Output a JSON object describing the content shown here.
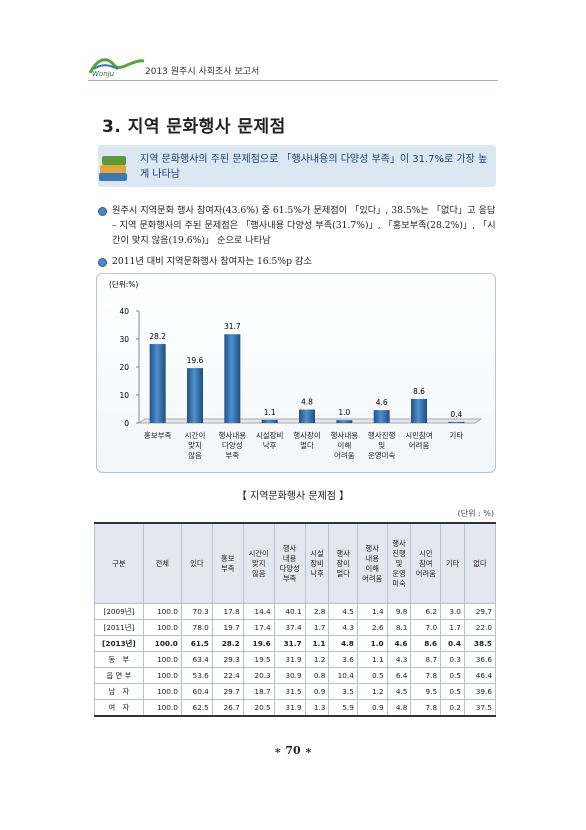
{
  "header": {
    "logo": "Wonju",
    "report": "2013 원주시 사회조사 보고서"
  },
  "title": "3. 지역 문화행사 문제점",
  "highlight": "지역 문화행사의 주된 문제점으로 「행사내용의 다양성 부족」이 31.7%로 가장 높게 나타남",
  "bullets": [
    {
      "text": "원주시 지역문화 행사 참여자(43.6%) 중 61.5%가 문제점이 「있다」, 38.5%는 「없다」고 응답",
      "sub": "– 지역 문화행사의 주된 문제점은 「행사내용 다양성 부족(31.7%)」, 「홍보부족(28.2%)」, 「시간이 맞지 않음(19.6%)」 순으로 나타남"
    },
    {
      "text": "2011년 대비 지역문화행사 참여자는 16.5%p 감소"
    }
  ],
  "chart_data": {
    "type": "bar",
    "unit": "(단위:%)",
    "categories": [
      "홍보부족",
      "시간이\n맞지\n않음",
      "행사내용\n다양성\n부족",
      "시설장비\n낙후",
      "행사장이\n멀다",
      "행사내용\n이해\n어려움",
      "행사진행\n및\n운영미숙",
      "시민참여\n어려움",
      "기타"
    ],
    "values": [
      28.2,
      19.6,
      31.7,
      1.1,
      4.8,
      1.0,
      4.6,
      8.6,
      0.4
    ],
    "value_labels": [
      "28.2",
      "19.6",
      "31.7",
      "1.1",
      "4.8",
      "1.0",
      "4.6",
      "8.6",
      "0.4"
    ],
    "color": "#2f6fa8",
    "ylim": [
      0,
      40
    ],
    "yticks": [
      0,
      10,
      20,
      30,
      40
    ],
    "grid": false
  },
  "table": {
    "caption": "【 지역문화행사 문제점 】",
    "unit": "(단위 : %)",
    "header": [
      "구분",
      "전체",
      "있다",
      "홍보\n부족",
      "시간이\n맞지\n않음",
      "행사\n내용\n다양성\n부족",
      "시설\n장비\n낙후",
      "행사\n장이\n멀다",
      "행사\n내용\n이해\n어려움",
      "행사\n진행\n및\n운영\n미숙",
      "시민\n참여\n어려움",
      "기타",
      "없다"
    ],
    "rows": [
      [
        "[2009년]",
        "100.0",
        "70.3",
        "17.8",
        "14.4",
        "40.1",
        "2.8",
        "4.5",
        "1.4",
        "9.8",
        "6.2",
        "3.0",
        "29.7"
      ],
      [
        "[2011년]",
        "100.0",
        "78.0",
        "19.7",
        "17.4",
        "37.4",
        "1.7",
        "4.3",
        "2.6",
        "8.1",
        "7.0",
        "1.7",
        "22.0"
      ],
      [
        "[2013년]",
        "100.0",
        "61.5",
        "28.2",
        "19.6",
        "31.7",
        "1.1",
        "4.8",
        "1.0",
        "4.6",
        "8.6",
        "0.4",
        "38.5"
      ],
      [
        "동　부",
        "100.0",
        "63.4",
        "29.3",
        "19.5",
        "31.9",
        "1.2",
        "3.6",
        "1.1",
        "4.3",
        "8.7",
        "0.3",
        "36.6"
      ],
      [
        "읍 면 부",
        "100.0",
        "53.6",
        "22.4",
        "20.3",
        "30.9",
        "0.8",
        "10.4",
        "0.5",
        "6.4",
        "7.8",
        "0.5",
        "46.4"
      ],
      [
        "남　자",
        "100.0",
        "60.4",
        "29.7",
        "18.7",
        "31.5",
        "0.9",
        "3.5",
        "1.2",
        "4.5",
        "9.5",
        "0.5",
        "39.6"
      ],
      [
        "여　자",
        "100.0",
        "62.5",
        "26.7",
        "20.5",
        "31.9",
        "1.3",
        "5.9",
        "0.9",
        "4.8",
        "7.8",
        "0.2",
        "37.5"
      ]
    ]
  },
  "page_number": "∗ 70 ∗"
}
